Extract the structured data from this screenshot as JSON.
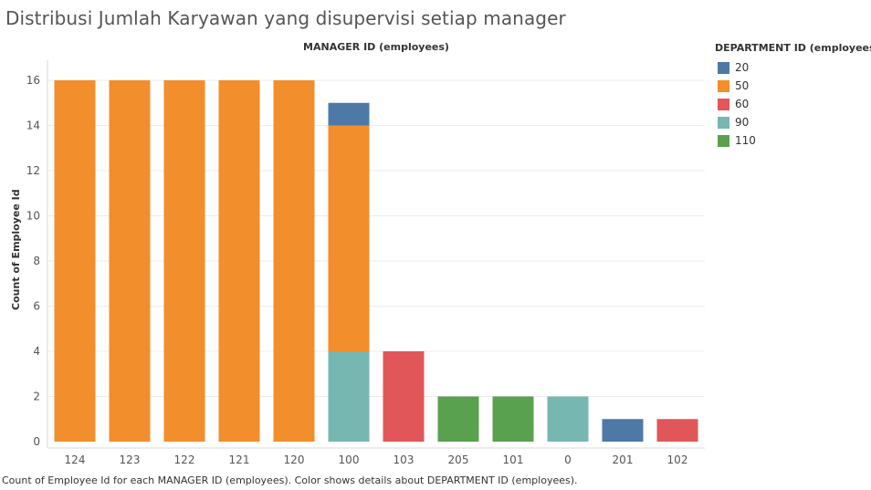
{
  "title": "Distribusi Jumlah Karyawan yang disupervisi setiap manager",
  "caption": "Count of Employee Id for each MANAGER ID (employees).  Color shows details about DEPARTMENT ID (employees).",
  "legend": {
    "title": "DEPARTMENT ID (employees)",
    "items": [
      {
        "label": "20",
        "color": "#4e79a7"
      },
      {
        "label": "50",
        "color": "#f28e2b"
      },
      {
        "label": "60",
        "color": "#e15759"
      },
      {
        "label": "90",
        "color": "#76b7b2"
      },
      {
        "label": "110",
        "color": "#59a14f"
      }
    ]
  },
  "chart_data": {
    "type": "bar",
    "stacked": true,
    "title": "Distribusi Jumlah Karyawan yang disupervisi setiap manager",
    "xlabel": "MANAGER ID (employees)",
    "ylabel": "Count of Employee Id",
    "categories": [
      "124",
      "123",
      "122",
      "121",
      "120",
      "100",
      "103",
      "205",
      "101",
      "0",
      "201",
      "102"
    ],
    "series": [
      {
        "name": "90",
        "color": "#76b7b2",
        "values": [
          0,
          0,
          0,
          0,
          0,
          4,
          0,
          0,
          0,
          2,
          0,
          0
        ]
      },
      {
        "name": "50",
        "color": "#f28e2b",
        "values": [
          16,
          16,
          16,
          16,
          16,
          10,
          0,
          0,
          0,
          0,
          0,
          0
        ]
      },
      {
        "name": "20",
        "color": "#4e79a7",
        "values": [
          0,
          0,
          0,
          0,
          0,
          1,
          0,
          0,
          0,
          0,
          1,
          0
        ]
      },
      {
        "name": "60",
        "color": "#e15759",
        "values": [
          0,
          0,
          0,
          0,
          0,
          0,
          4,
          0,
          0,
          0,
          0,
          1
        ]
      },
      {
        "name": "110",
        "color": "#59a14f",
        "values": [
          0,
          0,
          0,
          0,
          0,
          0,
          0,
          2,
          2,
          0,
          0,
          0
        ]
      }
    ],
    "y_ticks": [
      0,
      2,
      4,
      6,
      8,
      10,
      12,
      14,
      16
    ],
    "ylim": [
      0,
      16.5
    ],
    "grid": true,
    "legend_position": "right"
  }
}
